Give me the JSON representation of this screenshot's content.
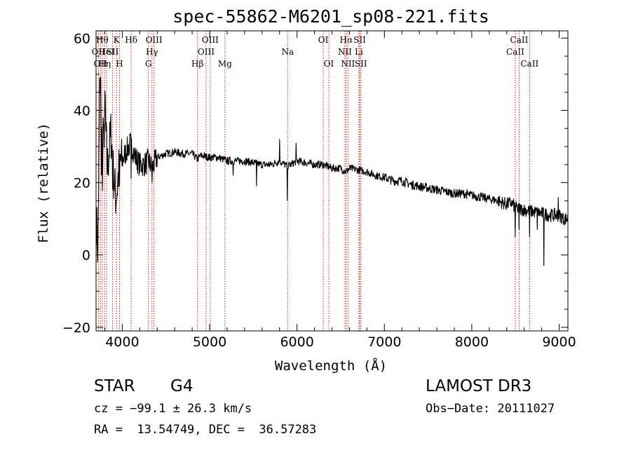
{
  "chart_data": {
    "type": "line",
    "title": "spec-55862-M6201_sp08-221.fits",
    "xlabel": "Wavelength (Å)",
    "ylabel": "Flux (relative)",
    "xlim": [
      3700,
      9100
    ],
    "ylim": [
      -21,
      62
    ],
    "xticks": [
      4000,
      5000,
      6000,
      7000,
      8000,
      9000
    ],
    "xtick_labels": [
      "4000",
      "5000",
      "6000",
      "7000",
      "8000",
      "9000"
    ],
    "yticks": [
      -20,
      0,
      20,
      40,
      60
    ],
    "ytick_labels": [
      "−20",
      "0",
      "20",
      "40",
      "60"
    ],
    "spectrum_anchors": [
      [
        3705,
        10
      ],
      [
        3720,
        0
      ],
      [
        3735,
        30
      ],
      [
        3750,
        48
      ],
      [
        3775,
        22
      ],
      [
        3800,
        40
      ],
      [
        3830,
        24
      ],
      [
        3870,
        34
      ],
      [
        3900,
        22
      ],
      [
        3930,
        15
      ],
      [
        3970,
        26
      ],
      [
        4000,
        26
      ],
      [
        4050,
        29
      ],
      [
        4100,
        31
      ],
      [
        4150,
        27
      ],
      [
        4200,
        25
      ],
      [
        4250,
        25
      ],
      [
        4300,
        26
      ],
      [
        4340,
        24
      ],
      [
        4400,
        27
      ],
      [
        4500,
        28
      ],
      [
        4600,
        28.5
      ],
      [
        4700,
        28
      ],
      [
        4800,
        28
      ],
      [
        4860,
        26.5
      ],
      [
        4900,
        27.5
      ],
      [
        5000,
        27
      ],
      [
        5100,
        27
      ],
      [
        5200,
        26
      ],
      [
        5300,
        26
      ],
      [
        5400,
        26
      ],
      [
        5500,
        25.5
      ],
      [
        5600,
        25
      ],
      [
        5700,
        25
      ],
      [
        5800,
        26
      ],
      [
        5890,
        24.5
      ],
      [
        6000,
        26
      ],
      [
        6100,
        25.5
      ],
      [
        6200,
        25
      ],
      [
        6300,
        25
      ],
      [
        6400,
        24
      ],
      [
        6500,
        24
      ],
      [
        6563,
        23
      ],
      [
        6600,
        24
      ],
      [
        6700,
        23.5
      ],
      [
        6800,
        23
      ],
      [
        6900,
        22
      ],
      [
        7000,
        21.5
      ],
      [
        7100,
        20.5
      ],
      [
        7200,
        20.5
      ],
      [
        7300,
        19.5
      ],
      [
        7400,
        19
      ],
      [
        7500,
        18.5
      ],
      [
        7600,
        18
      ],
      [
        7700,
        17.5
      ],
      [
        7800,
        17
      ],
      [
        7900,
        17
      ],
      [
        8000,
        16.5
      ],
      [
        8100,
        16
      ],
      [
        8200,
        15.5
      ],
      [
        8300,
        15
      ],
      [
        8400,
        14
      ],
      [
        8450,
        14.5
      ],
      [
        8500,
        13
      ],
      [
        8600,
        12.5
      ],
      [
        8700,
        12
      ],
      [
        8800,
        11.5
      ],
      [
        8900,
        11
      ],
      [
        9000,
        11
      ],
      [
        9050,
        10
      ],
      [
        9100,
        10
      ]
    ],
    "spikes": [
      [
        3740,
        49
      ],
      [
        3762,
        22
      ],
      [
        3780,
        38
      ],
      [
        3805,
        44
      ],
      [
        3835,
        19
      ],
      [
        3889,
        18
      ],
      [
        3934,
        15
      ],
      [
        3968,
        19
      ],
      [
        4102,
        21
      ],
      [
        4340,
        20
      ],
      [
        5270,
        22
      ],
      [
        5536,
        19
      ],
      [
        5800,
        32
      ],
      [
        5890,
        15
      ],
      [
        5990,
        31
      ],
      [
        6367,
        18
      ],
      [
        6563,
        21
      ],
      [
        8498,
        5
      ],
      [
        8542,
        7
      ],
      [
        8662,
        5
      ],
      [
        8750,
        7
      ],
      [
        8825,
        -3
      ],
      [
        8990,
        16
      ]
    ],
    "line_markers": [
      {
        "wl": 3727,
        "label": "OII",
        "row": 1
      },
      {
        "wl": 3750,
        "label": "OII",
        "row": 2
      },
      {
        "wl": 3771,
        "label": "Hθ",
        "row": 0
      },
      {
        "wl": 3798,
        "label": "Hη",
        "row": 2
      },
      {
        "wl": 3820,
        "label": "HeI",
        "row": 1
      },
      {
        "wl": 3889,
        "label": "SII",
        "row": 1
      },
      {
        "wl": 3934,
        "label": "K",
        "row": 0
      },
      {
        "wl": 3968,
        "label": "H",
        "row": 2
      },
      {
        "wl": 4102,
        "label": "Hδ",
        "row": 0
      },
      {
        "wl": 4300,
        "label": "G",
        "row": 2
      },
      {
        "wl": 4340,
        "label": "Hγ",
        "row": 1
      },
      {
        "wl": 4363,
        "label": "OIII",
        "row": 0
      },
      {
        "wl": 4861,
        "label": "Hβ",
        "row": 2
      },
      {
        "wl": 4959,
        "label": "OIII",
        "row": 1
      },
      {
        "wl": 5007,
        "label": "OIII",
        "row": 0
      },
      {
        "wl": 5175,
        "label": "Mg",
        "row": 2
      },
      {
        "wl": 5893,
        "label": "Na",
        "row": 1
      },
      {
        "wl": 6300,
        "label": "OI",
        "row": 0
      },
      {
        "wl": 6364,
        "label": "OI",
        "row": 2
      },
      {
        "wl": 6548,
        "label": "NII",
        "row": 1
      },
      {
        "wl": 6563,
        "label": "Hα",
        "row": 0
      },
      {
        "wl": 6583,
        "label": "NII",
        "row": 2
      },
      {
        "wl": 6708,
        "label": "Li",
        "row": 1
      },
      {
        "wl": 6717,
        "label": "SII",
        "row": 0
      },
      {
        "wl": 6731,
        "label": "SII",
        "row": 2
      },
      {
        "wl": 8498,
        "label": "CaII",
        "row": 1
      },
      {
        "wl": 8542,
        "label": "CaII",
        "row": 0
      },
      {
        "wl": 8662,
        "label": "CaII",
        "row": 2
      }
    ],
    "colors": {
      "spectrum": "#000000",
      "markers": "#cc0000",
      "axes": "#000000"
    }
  },
  "info": {
    "class": "STAR",
    "subclass": "G4",
    "survey": "LAMOST DR3",
    "cz": "cz = −99.1 ± 26.3 km/s",
    "obs_date": "Obs−Date: 20111027",
    "radec": "RA =  13.54749, DEC =  36.57283"
  }
}
